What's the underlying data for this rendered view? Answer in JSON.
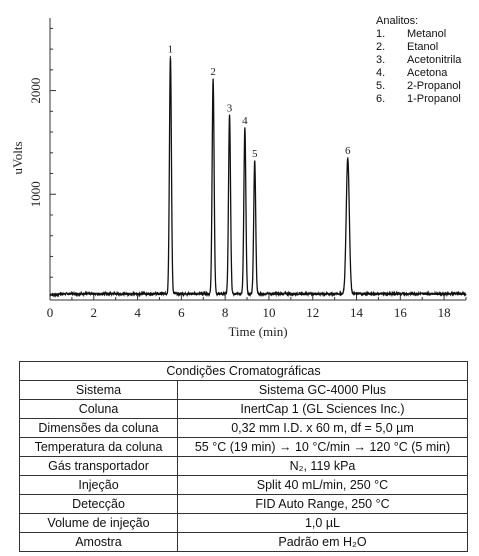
{
  "chart_data": {
    "type": "line",
    "xlabel": "Time (min)",
    "ylabel": "uVolts",
    "xlim": [
      0,
      19
    ],
    "ylim": [
      -20,
      2700
    ],
    "x_ticks": [
      0,
      2,
      4,
      6,
      8,
      10,
      12,
      14,
      16,
      18
    ],
    "y_ticks": [
      1000,
      2000
    ],
    "baseline": 40,
    "peaks": [
      {
        "label": "1",
        "time": 5.5,
        "height": 2290
      },
      {
        "label": "2",
        "time": 7.45,
        "height": 2070
      },
      {
        "label": "3",
        "time": 8.2,
        "height": 1720
      },
      {
        "label": "4",
        "time": 8.9,
        "height": 1600
      },
      {
        "label": "5",
        "time": 9.35,
        "height": 1280
      },
      {
        "label": "6",
        "time": 13.6,
        "height": 1310
      }
    ],
    "legend": {
      "title": "Analitos:",
      "items": [
        {
          "num": "1.",
          "name": "Metanol"
        },
        {
          "num": "2.",
          "name": "Etanol"
        },
        {
          "num": "3.",
          "name": "Acetonitrila"
        },
        {
          "num": "4.",
          "name": "Acetona"
        },
        {
          "num": "5.",
          "name": "2-Propanol"
        },
        {
          "num": "6.",
          "name": "1-Propanol"
        }
      ]
    }
  },
  "table": {
    "title": "Condições Cromatográficas",
    "rows": [
      {
        "label": "Sistema",
        "value": "Sistema GC-4000 Plus"
      },
      {
        "label": "Coluna",
        "value": "InertCap 1 (GL Sciences Inc.)"
      },
      {
        "label": "Dimensões da coluna",
        "value": "0,32 mm I.D. x 60 m, df = 5,0 µm"
      },
      {
        "label": "Temperatura da coluna",
        "value": "55 °C (19 min) → 10 °C/min → 120 °C (5 min)"
      },
      {
        "label": "Gás transportador",
        "value": "N₂, 119 kPa"
      },
      {
        "label": "Injeção",
        "value": "Split 40 mL/min, 250 °C"
      },
      {
        "label": "Detecção",
        "value": "FID Auto Range, 250 °C"
      },
      {
        "label": "Volume de injeção",
        "value": "1,0 µL"
      },
      {
        "label": "Amostra",
        "value": "Padrão em H₂O"
      }
    ]
  }
}
